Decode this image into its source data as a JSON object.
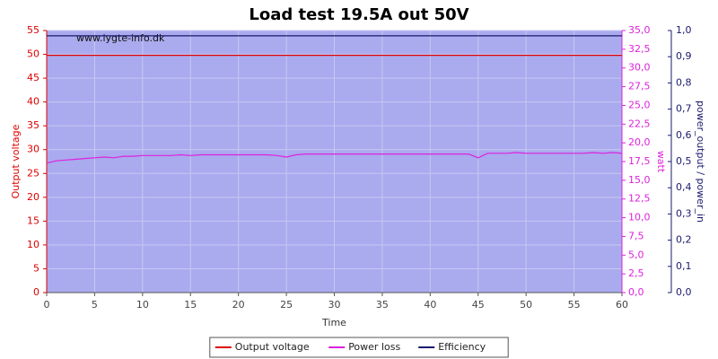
{
  "chart_data": {
    "type": "line",
    "title": "Load test 19.5A out 50V",
    "watermark": "www.lygte-info.dk",
    "x_label": "Time",
    "y_label": "Output voltage",
    "y2_label": "watt",
    "y3_label": "power_output / power_in",
    "grid": true,
    "legend": "bottom",
    "background": "#aaaaee",
    "x": [
      0,
      1,
      2,
      3,
      4,
      5,
      6,
      7,
      8,
      9,
      10,
      11,
      12,
      13,
      14,
      15,
      16,
      17,
      18,
      19,
      20,
      21,
      22,
      23,
      24,
      25,
      26,
      27,
      28,
      29,
      30,
      31,
      32,
      33,
      34,
      35,
      36,
      37,
      38,
      39,
      40,
      41,
      42,
      43,
      44,
      45,
      46,
      47,
      48,
      49,
      50,
      51,
      52,
      53,
      54,
      55,
      56,
      57,
      58,
      59,
      60
    ],
    "xlim": [
      0,
      60
    ],
    "xticks": [
      0,
      5,
      10,
      15,
      20,
      25,
      30,
      35,
      40,
      45,
      50,
      55,
      60
    ],
    "ylim": [
      0,
      55
    ],
    "yticks": [
      0,
      5,
      10,
      15,
      20,
      25,
      30,
      35,
      40,
      45,
      50,
      55
    ],
    "y2lim": [
      0,
      35
    ],
    "y2ticks": [
      {
        "value": 0,
        "label": "0,0"
      },
      {
        "value": 2.5,
        "label": "2,5"
      },
      {
        "value": 5,
        "label": "5,0"
      },
      {
        "value": 7.5,
        "label": "7,5"
      },
      {
        "value": 10,
        "label": "10,0"
      },
      {
        "value": 12.5,
        "label": "12,5"
      },
      {
        "value": 15,
        "label": "15,0"
      },
      {
        "value": 17.5,
        "label": "17,5"
      },
      {
        "value": 20,
        "label": "20,0"
      },
      {
        "value": 22.5,
        "label": "22,5"
      },
      {
        "value": 25,
        "label": "25,0"
      },
      {
        "value": 27.5,
        "label": "27,5"
      },
      {
        "value": 30,
        "label": "30,0"
      },
      {
        "value": 32.5,
        "label": "32,5"
      },
      {
        "value": 35,
        "label": "35,0"
      }
    ],
    "y3lim": [
      0,
      1
    ],
    "y3ticks": [
      {
        "value": 0,
        "label": "0,0"
      },
      {
        "value": 0.1,
        "label": "0,1"
      },
      {
        "value": 0.2,
        "label": "0,2"
      },
      {
        "value": 0.3,
        "label": "0,3"
      },
      {
        "value": 0.4,
        "label": "0,4"
      },
      {
        "value": 0.5,
        "label": "0,5"
      },
      {
        "value": 0.6,
        "label": "0,6"
      },
      {
        "value": 0.7,
        "label": "0,7"
      },
      {
        "value": 0.8,
        "label": "0,8"
      },
      {
        "value": 0.9,
        "label": "0,9"
      },
      {
        "value": 1,
        "label": "1,0"
      }
    ],
    "series": [
      {
        "name": "Output voltage",
        "color": "#dd0000",
        "axis": "y",
        "values": [
          49.8,
          49.8,
          49.8,
          49.8,
          49.8,
          49.8,
          49.8,
          49.8,
          49.8,
          49.8,
          49.8,
          49.8,
          49.8,
          49.8,
          49.8,
          49.8,
          49.8,
          49.8,
          49.8,
          49.8,
          49.8,
          49.8,
          49.8,
          49.8,
          49.8,
          49.8,
          49.8,
          49.8,
          49.8,
          49.8,
          49.8,
          49.8,
          49.8,
          49.8,
          49.8,
          49.8,
          49.8,
          49.8,
          49.8,
          49.8,
          49.8,
          49.8,
          49.8,
          49.8,
          49.8,
          49.8,
          49.8,
          49.8,
          49.8,
          49.8,
          49.8,
          49.8,
          49.8,
          49.8,
          49.8,
          49.8,
          49.8,
          49.8,
          49.8,
          49.8,
          49.8
        ]
      },
      {
        "name": "Power loss",
        "color": "#dd22dd",
        "axis": "y2",
        "values": [
          17.3,
          17.6,
          17.7,
          17.8,
          17.9,
          18.0,
          18.1,
          18.0,
          18.2,
          18.2,
          18.3,
          18.3,
          18.3,
          18.3,
          18.4,
          18.3,
          18.4,
          18.4,
          18.4,
          18.4,
          18.4,
          18.4,
          18.4,
          18.4,
          18.3,
          18.1,
          18.4,
          18.5,
          18.5,
          18.5,
          18.5,
          18.5,
          18.5,
          18.5,
          18.5,
          18.5,
          18.5,
          18.5,
          18.5,
          18.5,
          18.5,
          18.5,
          18.5,
          18.5,
          18.5,
          18.0,
          18.6,
          18.6,
          18.6,
          18.7,
          18.6,
          18.6,
          18.6,
          18.6,
          18.6,
          18.6,
          18.6,
          18.7,
          18.6,
          18.7,
          18.6
        ]
      },
      {
        "name": "Efficiency",
        "color": "#1a1a6e",
        "axis": "y3",
        "values": [
          0.98,
          0.98,
          0.98,
          0.98,
          0.98,
          0.98,
          0.98,
          0.98,
          0.98,
          0.98,
          0.98,
          0.98,
          0.98,
          0.98,
          0.98,
          0.98,
          0.98,
          0.98,
          0.98,
          0.98,
          0.98,
          0.98,
          0.98,
          0.98,
          0.98,
          0.98,
          0.98,
          0.98,
          0.98,
          0.98,
          0.98,
          0.98,
          0.98,
          0.98,
          0.98,
          0.98,
          0.98,
          0.98,
          0.98,
          0.98,
          0.98,
          0.98,
          0.98,
          0.98,
          0.98,
          0.98,
          0.98,
          0.98,
          0.98,
          0.98,
          0.98,
          0.98,
          0.98,
          0.98,
          0.98,
          0.98,
          0.98,
          0.98,
          0.98,
          0.98,
          0.98
        ]
      }
    ]
  }
}
